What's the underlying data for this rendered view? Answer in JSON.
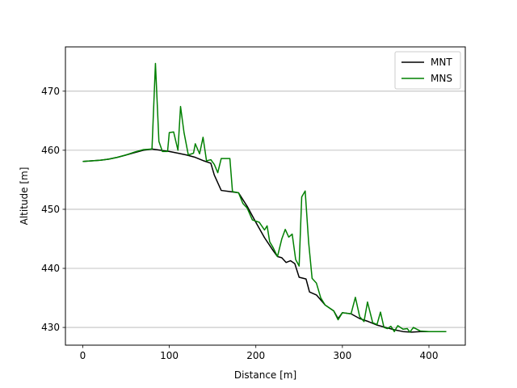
{
  "chart_data": {
    "type": "line",
    "title": "",
    "xlabel": "Distance [m]",
    "ylabel": "Altitude [m]",
    "xlim": [
      -20,
      442
    ],
    "ylim": [
      427,
      477.5
    ],
    "x_ticks": [
      0,
      100,
      200,
      300,
      400
    ],
    "y_ticks": [
      430,
      440,
      450,
      460,
      470
    ],
    "grid": "y-only",
    "legend_position": "top-right",
    "series": [
      {
        "name": "MNT",
        "color": "#000000",
        "points": [
          [
            0,
            458.1
          ],
          [
            10,
            458.2
          ],
          [
            20,
            458.3
          ],
          [
            30,
            458.5
          ],
          [
            40,
            458.8
          ],
          [
            50,
            459.2
          ],
          [
            60,
            459.6
          ],
          [
            70,
            460.0
          ],
          [
            80,
            460.2
          ],
          [
            90,
            460.0
          ],
          [
            100,
            459.8
          ],
          [
            110,
            459.5
          ],
          [
            120,
            459.2
          ],
          [
            130,
            458.8
          ],
          [
            140,
            458.2
          ],
          [
            148,
            457.8
          ],
          [
            152,
            455.8
          ],
          [
            160,
            453.2
          ],
          [
            170,
            453.0
          ],
          [
            180,
            452.8
          ],
          [
            190,
            450.5
          ],
          [
            200,
            447.8
          ],
          [
            210,
            445.2
          ],
          [
            220,
            443.0
          ],
          [
            225,
            442.0
          ],
          [
            230,
            441.8
          ],
          [
            235,
            441.0
          ],
          [
            240,
            441.3
          ],
          [
            245,
            440.8
          ],
          [
            250,
            438.5
          ],
          [
            258,
            438.2
          ],
          [
            262,
            436.0
          ],
          [
            270,
            435.5
          ],
          [
            280,
            433.8
          ],
          [
            290,
            432.8
          ],
          [
            295,
            431.5
          ],
          [
            300,
            432.5
          ],
          [
            310,
            432.3
          ],
          [
            320,
            431.5
          ],
          [
            330,
            431.0
          ],
          [
            340,
            430.4
          ],
          [
            350,
            430.0
          ],
          [
            360,
            429.6
          ],
          [
            370,
            429.3
          ],
          [
            380,
            429.2
          ],
          [
            390,
            429.3
          ],
          [
            400,
            429.3
          ],
          [
            410,
            429.3
          ],
          [
            420,
            429.3
          ]
        ]
      },
      {
        "name": "MNS",
        "color": "#008000",
        "points": [
          [
            0,
            458.1
          ],
          [
            10,
            458.2
          ],
          [
            20,
            458.3
          ],
          [
            30,
            458.5
          ],
          [
            40,
            458.8
          ],
          [
            50,
            459.2
          ],
          [
            60,
            459.7
          ],
          [
            70,
            460.1
          ],
          [
            80,
            460.2
          ],
          [
            84,
            474.7
          ],
          [
            88,
            461.5
          ],
          [
            92,
            459.8
          ],
          [
            98,
            459.8
          ],
          [
            100,
            463.0
          ],
          [
            105,
            463.1
          ],
          [
            110,
            460.0
          ],
          [
            113,
            467.4
          ],
          [
            117,
            463.0
          ],
          [
            122,
            459.2
          ],
          [
            128,
            459.5
          ],
          [
            130,
            461.1
          ],
          [
            135,
            459.4
          ],
          [
            139,
            462.2
          ],
          [
            143,
            458.2
          ],
          [
            148,
            458.4
          ],
          [
            152,
            457.6
          ],
          [
            156,
            456.2
          ],
          [
            160,
            458.6
          ],
          [
            166,
            458.6
          ],
          [
            170,
            458.6
          ],
          [
            173,
            453.0
          ],
          [
            180,
            452.8
          ],
          [
            185,
            451.0
          ],
          [
            190,
            450.2
          ],
          [
            196,
            448.2
          ],
          [
            200,
            448.0
          ],
          [
            204,
            447.8
          ],
          [
            210,
            446.5
          ],
          [
            213,
            447.2
          ],
          [
            216,
            444.5
          ],
          [
            220,
            443.5
          ],
          [
            225,
            442.0
          ],
          [
            230,
            445.0
          ],
          [
            234,
            446.6
          ],
          [
            238,
            445.3
          ],
          [
            242,
            445.8
          ],
          [
            246,
            441.5
          ],
          [
            250,
            440.4
          ],
          [
            253,
            452.1
          ],
          [
            257,
            453.1
          ],
          [
            261,
            444.4
          ],
          [
            265,
            438.3
          ],
          [
            270,
            437.5
          ],
          [
            275,
            435.0
          ],
          [
            280,
            433.8
          ],
          [
            290,
            432.8
          ],
          [
            295,
            431.3
          ],
          [
            300,
            432.5
          ],
          [
            310,
            432.3
          ],
          [
            315,
            435.1
          ],
          [
            320,
            431.8
          ],
          [
            325,
            431.0
          ],
          [
            329,
            434.3
          ],
          [
            335,
            430.8
          ],
          [
            340,
            430.5
          ],
          [
            344,
            432.6
          ],
          [
            348,
            430.0
          ],
          [
            352,
            429.8
          ],
          [
            356,
            430.2
          ],
          [
            360,
            429.3
          ],
          [
            364,
            430.3
          ],
          [
            370,
            429.7
          ],
          [
            375,
            429.8
          ],
          [
            378,
            429.2
          ],
          [
            382,
            430.0
          ],
          [
            386,
            429.7
          ],
          [
            390,
            429.4
          ],
          [
            400,
            429.3
          ],
          [
            410,
            429.3
          ],
          [
            420,
            429.3
          ]
        ]
      }
    ]
  }
}
